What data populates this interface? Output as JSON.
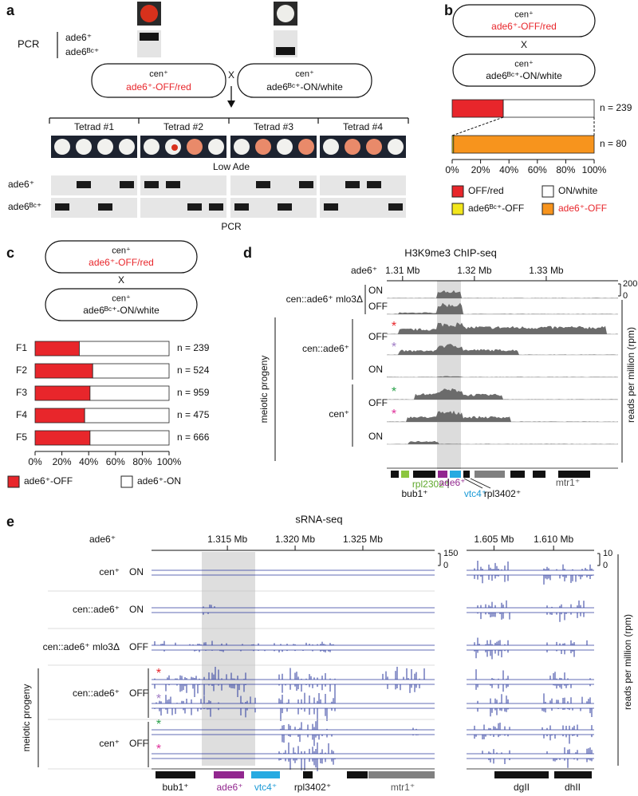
{
  "panel_a": {
    "label": "a",
    "pcr_top": "PCR",
    "gel_labels": [
      "ade6⁺",
      "ade6ᴮᶜ⁺"
    ],
    "cross_left": [
      "cen⁺",
      "ade6⁺-OFF/red"
    ],
    "cross_x": "X",
    "cross_right": [
      "cen⁺",
      "ade6ᴮᶜ⁺-ON/white"
    ],
    "tetrads": [
      "Tetrad #1",
      "Tetrad #2",
      "Tetrad #3",
      "Tetrad #4"
    ],
    "media": "Low Ade",
    "gel_row_labels": [
      "ade6⁺",
      "ade6ᴮᶜ⁺"
    ],
    "pcr_bottom": "PCR"
  },
  "panel_b": {
    "label": "b",
    "cross_left": [
      "cen⁺",
      "ade6⁺-OFF/red"
    ],
    "cross_x": "X",
    "cross_right": [
      "cen⁺",
      "ade6ᴮᶜ⁺-ON/white"
    ]
  },
  "panel_c": {
    "label": "c",
    "cross_left": [
      "cen⁺",
      "ade6⁺-OFF/red"
    ],
    "cross_x": "X",
    "cross_right": [
      "cen⁺",
      "ade6ᴮᶜ⁺-ON/white"
    ]
  },
  "chart_data": [
    {
      "type": "bar",
      "orientation": "horizontal",
      "stacked": true,
      "row_labels": [
        "n = 239",
        "n = 80"
      ],
      "series": [
        {
          "name": "OFF/red",
          "color": "#e8262b",
          "values": [
            36,
            null
          ]
        },
        {
          "name": "ON/white",
          "color": "#ffffff",
          "values": [
            64,
            null
          ]
        },
        {
          "name": "ade6ᴮᶜ⁺-OFF",
          "color": "#f2e61c",
          "values": [
            null,
            1
          ]
        },
        {
          "name": "ade6⁺-OFF",
          "color": "#f7941d",
          "values": [
            null,
            99
          ]
        }
      ],
      "xlim": [
        0,
        100
      ],
      "xticks": [
        {
          "value": 0,
          "label": "0%"
        },
        {
          "value": 20,
          "label": "20%"
        },
        {
          "value": 40,
          "label": "40%"
        },
        {
          "value": 60,
          "label": "60%"
        },
        {
          "value": 80,
          "label": "80%"
        },
        {
          "value": 100,
          "label": "100%"
        }
      ]
    },
    {
      "type": "bar",
      "orientation": "horizontal",
      "stacked": true,
      "categories": [
        "F1",
        "F2",
        "F3",
        "F4",
        "F5"
      ],
      "row_labels": [
        "n = 239",
        "n = 524",
        "n = 959",
        "n = 475",
        "n = 666"
      ],
      "series": [
        {
          "name": "ade6⁺-OFF",
          "color": "#e8262b",
          "values": [
            33,
            43,
            41,
            37,
            41
          ]
        },
        {
          "name": "ade6⁺-ON",
          "color": "#ffffff",
          "values": [
            67,
            57,
            59,
            63,
            59
          ]
        }
      ],
      "xlim": [
        0,
        100
      ],
      "xticks": [
        {
          "value": 0,
          "label": "0%"
        },
        {
          "value": 20,
          "label": "20%"
        },
        {
          "value": 40,
          "label": "40%"
        },
        {
          "value": 60,
          "label": "60%"
        },
        {
          "value": 80,
          "label": "80%"
        },
        {
          "value": 100,
          "label": "100%"
        }
      ]
    }
  ],
  "panel_d": {
    "label": "d",
    "title": "H3K9me3 ChIP-seq",
    "locus_label": "ade6⁺",
    "xlim": [
      1.3078,
      1.34
    ],
    "xticks": [
      {
        "value": 1.31,
        "label": "1.31 Mb"
      },
      {
        "value": 1.32,
        "label": "1.32 Mb"
      },
      {
        "value": 1.33,
        "label": "1.33 Mb"
      }
    ],
    "scale": [
      200,
      0
    ],
    "y_label": "reads per million (rpm)",
    "strain_labels": [
      "cen::ade6⁺ mlo3Δ",
      "cen::ade6⁺",
      "cen⁺"
    ],
    "state_labels": [
      "ON",
      "OFF",
      "OFF",
      "ON",
      "OFF",
      "ON"
    ],
    "group_label": "meiotic progeny",
    "asterisks": [
      "*",
      "*",
      "*",
      "*"
    ],
    "gene_labels": [
      "rpl2302⁺",
      "bub1⁺",
      "ade6⁺",
      "vtc4⁺",
      "rpl3402⁺",
      "mtr1⁺"
    ]
  },
  "panel_e": {
    "label": "e",
    "title": "sRNA-seq",
    "locus_label": "ade6⁺",
    "xlim": [
      1.3094,
      1.3303
    ],
    "xticks": [
      {
        "value": 1.315,
        "label": "1.315 Mb"
      },
      {
        "value": 1.32,
        "label": "1.320 Mb"
      },
      {
        "value": 1.325,
        "label": "1.325 Mb"
      }
    ],
    "x2lim": [
      1.6027,
      1.6134
    ],
    "x2ticks": [
      {
        "value": 1.605,
        "label": "1.605 Mb"
      },
      {
        "value": 1.61,
        "label": "1.610 Mb"
      }
    ],
    "scale_left": [
      150,
      0
    ],
    "scale_right": [
      10,
      0
    ],
    "y_label": "reads per million (rpm)",
    "strain_labels": [
      "cen⁺",
      "cen::ade6⁺",
      "cen::ade6⁺ mlo3Δ",
      "cen::ade6⁺",
      "cen⁺"
    ],
    "state_labels": [
      "ON",
      "ON",
      "OFF",
      "OFF",
      "OFF"
    ],
    "group_label": "meiotic progeny",
    "asterisks": [
      "*",
      "*",
      "*",
      "*"
    ],
    "gene_labels": [
      "bub1⁺",
      "ade6⁺",
      "vtc4⁺",
      "rpl3402⁺",
      "mtr1⁺",
      "dgII",
      "dhII"
    ]
  }
}
